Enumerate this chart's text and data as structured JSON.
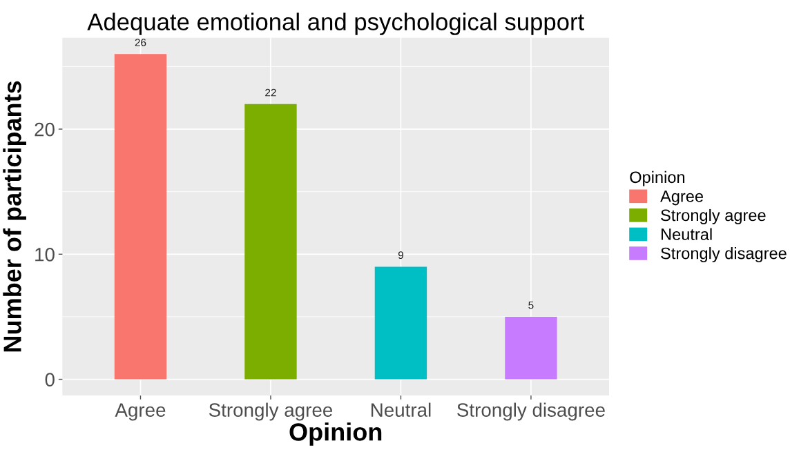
{
  "chart_data": {
    "type": "bar",
    "title": "Adequate emotional and psychological support",
    "xlabel": "Opinion",
    "ylabel": "Number of participants",
    "legend_title": "Opinion",
    "categories": [
      "Agree",
      "Strongly agree",
      "Neutral",
      "Strongly disagree"
    ],
    "series": [
      {
        "name": "Agree",
        "color": "#f8766d",
        "values": [
          26,
          null,
          null,
          null
        ]
      },
      {
        "name": "Strongly agree",
        "color": "#7cae00",
        "values": [
          null,
          22,
          null,
          null
        ]
      },
      {
        "name": "Neutral",
        "color": "#00bfc4",
        "values": [
          null,
          null,
          9,
          null
        ]
      },
      {
        "name": "Strongly disagree",
        "color": "#c77cff",
        "values": [
          null,
          null,
          null,
          5
        ]
      }
    ],
    "ylim": [
      -1.3,
      27.3
    ],
    "yticks": [
      0,
      10,
      20
    ],
    "grid": true,
    "legend": "right",
    "data_labels": true
  }
}
